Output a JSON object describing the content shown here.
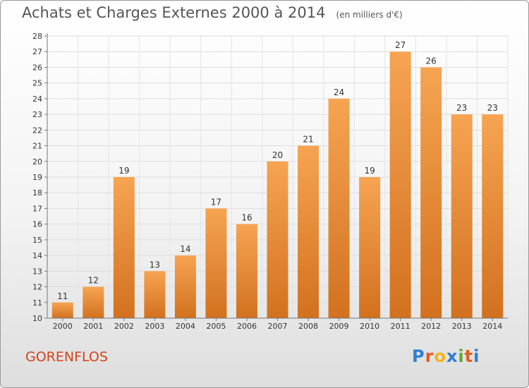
{
  "title": "Achats et Charges Externes 2000 à 2014",
  "unit": "(en milliers d'€)",
  "commune": "GORENFLOS",
  "logo": {
    "letters": [
      "P",
      "r",
      "o",
      "x",
      "i",
      "t",
      "i"
    ],
    "colors": [
      "#2e7fd1",
      "#e35d1c",
      "#f2b51a",
      "#2e7fd1",
      "#5aa832",
      "#e35d1c",
      "#2e7fd1"
    ]
  },
  "colors": {
    "bar_light": "#f6a452",
    "bar_dark": "#d2711e",
    "title": "#555555",
    "commune": "#d4441c"
  },
  "chart_data": {
    "type": "bar",
    "title": "Achats et Charges Externes 2000 à 2014",
    "subtitle": "(en milliers d'€)",
    "categories": [
      "2000",
      "2001",
      "2002",
      "2003",
      "2004",
      "2005",
      "2006",
      "2007",
      "2008",
      "2009",
      "2010",
      "2011",
      "2012",
      "2013",
      "2014"
    ],
    "values": [
      11,
      12,
      19,
      13,
      14,
      17,
      16,
      20,
      21,
      24,
      19,
      27,
      26,
      23,
      23
    ],
    "xlabel": "",
    "ylabel": "",
    "ylim": [
      10,
      28
    ],
    "yticks": [
      10,
      11,
      12,
      13,
      14,
      15,
      16,
      17,
      18,
      19,
      20,
      21,
      22,
      23,
      24,
      25,
      26,
      27,
      28
    ],
    "grid": true,
    "data_labels": true
  }
}
